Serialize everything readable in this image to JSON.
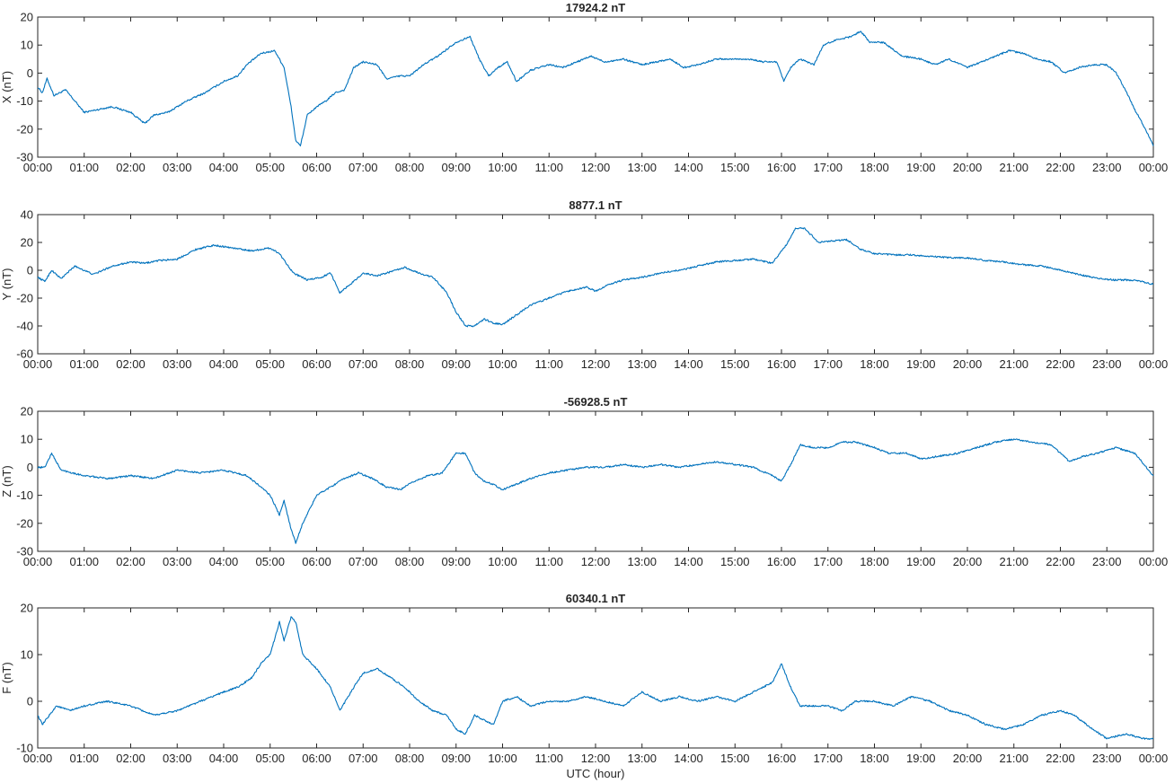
{
  "figure": {
    "xlabel": "UTC (hour)",
    "line_color": "#0072BD"
  },
  "chart_data": [
    {
      "type": "line",
      "title": "17924.2 nT",
      "ylabel": "X (nT)",
      "xlim": [
        0,
        24
      ],
      "ylim": [
        -30,
        20
      ],
      "yticks": [
        -30,
        -20,
        -10,
        0,
        10,
        20
      ],
      "xticks": [
        "00:00",
        "01:00",
        "02:00",
        "03:00",
        "04:00",
        "05:00",
        "06:00",
        "07:00",
        "08:00",
        "09:00",
        "10:00",
        "11:00",
        "12:00",
        "13:00",
        "14:00",
        "15:00",
        "16:00",
        "17:00",
        "18:00",
        "19:00",
        "20:00",
        "21:00",
        "22:00",
        "23:00",
        "00:00"
      ],
      "x": [
        0,
        0.1,
        0.2,
        0.35,
        0.6,
        1,
        1.3,
        1.6,
        2,
        2.3,
        2.5,
        2.8,
        3.2,
        3.6,
        4,
        4.3,
        4.5,
        4.8,
        5.1,
        5.3,
        5.45,
        5.55,
        5.65,
        5.8,
        6,
        6.2,
        6.4,
        6.6,
        6.8,
        7,
        7.3,
        7.5,
        7.8,
        8,
        8.3,
        8.6,
        9,
        9.3,
        9.5,
        9.7,
        9.9,
        10.1,
        10.3,
        10.6,
        11,
        11.3,
        11.6,
        11.9,
        12.2,
        12.6,
        13,
        13.3,
        13.6,
        13.9,
        14.2,
        14.6,
        15,
        15.3,
        15.6,
        15.9,
        16.05,
        16.2,
        16.4,
        16.7,
        16.9,
        17.2,
        17.5,
        17.7,
        17.9,
        18.2,
        18.6,
        19,
        19.3,
        19.6,
        20,
        20.3,
        20.6,
        20.9,
        21.2,
        21.5,
        21.8,
        22.1,
        22.4,
        22.7,
        23,
        23.2,
        23.4,
        23.6,
        23.8,
        24
      ],
      "values": [
        -5,
        -7,
        -2,
        -8,
        -6,
        -14,
        -13,
        -12,
        -14,
        -18,
        -15,
        -14,
        -10,
        -7,
        -3,
        -1,
        3,
        7,
        8,
        2,
        -12,
        -24,
        -26,
        -15,
        -12,
        -10,
        -7,
        -6,
        2,
        4,
        3,
        -2,
        -1,
        -1,
        3,
        6,
        11,
        13,
        5,
        -1,
        2,
        4,
        -3,
        1,
        3,
        2,
        4,
        6,
        4,
        5,
        3,
        4,
        5,
        2,
        3,
        5,
        5,
        5,
        4,
        4,
        -3,
        2,
        5,
        3,
        10,
        12,
        13,
        15,
        11,
        11,
        6,
        5,
        3,
        5,
        2,
        4,
        6,
        8,
        7,
        5,
        4,
        0,
        2,
        3,
        3,
        0,
        -6,
        -13,
        -19,
        -26
      ]
    },
    {
      "type": "line",
      "title": "8877.1 nT",
      "ylabel": "Y (nT)",
      "xlim": [
        0,
        24
      ],
      "ylim": [
        -60,
        40
      ],
      "yticks": [
        -60,
        -40,
        -20,
        0,
        20,
        40
      ],
      "xticks": [
        "00:00",
        "01:00",
        "02:00",
        "03:00",
        "04:00",
        "05:00",
        "06:00",
        "07:00",
        "08:00",
        "09:00",
        "10:00",
        "11:00",
        "12:00",
        "13:00",
        "14:00",
        "15:00",
        "16:00",
        "17:00",
        "18:00",
        "19:00",
        "20:00",
        "21:00",
        "22:00",
        "23:00",
        "00:00"
      ],
      "x": [
        0,
        0.15,
        0.3,
        0.5,
        0.8,
        1.2,
        1.6,
        2,
        2.3,
        2.6,
        3,
        3.4,
        3.8,
        4.2,
        4.6,
        5,
        5.2,
        5.5,
        5.8,
        6.1,
        6.3,
        6.5,
        6.8,
        7,
        7.3,
        7.6,
        7.9,
        8.2,
        8.5,
        8.8,
        9,
        9.2,
        9.4,
        9.6,
        9.8,
        10,
        10.3,
        10.6,
        11,
        11.4,
        11.8,
        12,
        12.3,
        12.6,
        13,
        13.4,
        13.8,
        14.2,
        14.6,
        15,
        15.4,
        15.8,
        16.1,
        16.3,
        16.5,
        16.8,
        17.1,
        17.4,
        17.7,
        18,
        18.4,
        18.8,
        19.2,
        19.6,
        20,
        20.4,
        20.8,
        21.2,
        21.6,
        22,
        22.4,
        22.8,
        23.2,
        23.6,
        24
      ],
      "values": [
        -5,
        -8,
        0,
        -6,
        3,
        -3,
        3,
        6,
        5,
        7,
        8,
        15,
        18,
        16,
        14,
        16,
        12,
        -2,
        -7,
        -5,
        -2,
        -16,
        -8,
        -2,
        -4,
        -1,
        2,
        -2,
        -5,
        -16,
        -30,
        -40,
        -40,
        -35,
        -38,
        -39,
        -32,
        -25,
        -20,
        -15,
        -12,
        -15,
        -10,
        -7,
        -5,
        -2,
        0,
        3,
        6,
        7,
        8,
        5,
        18,
        30,
        30,
        20,
        21,
        22,
        15,
        12,
        11,
        11,
        10,
        9,
        9,
        7,
        6,
        4,
        3,
        0,
        -3,
        -6,
        -7,
        -7,
        -10
      ]
    },
    {
      "type": "line",
      "title": "-56928.5 nT",
      "ylabel": "Z (nT)",
      "xlim": [
        0,
        24
      ],
      "ylim": [
        -30,
        20
      ],
      "yticks": [
        -30,
        -20,
        -10,
        0,
        10,
        20
      ],
      "xticks": [
        "00:00",
        "01:00",
        "02:00",
        "03:00",
        "04:00",
        "05:00",
        "06:00",
        "07:00",
        "08:00",
        "09:00",
        "10:00",
        "11:00",
        "12:00",
        "13:00",
        "14:00",
        "15:00",
        "16:00",
        "17:00",
        "18:00",
        "19:00",
        "20:00",
        "21:00",
        "22:00",
        "23:00",
        "00:00"
      ],
      "x": [
        0,
        0.15,
        0.3,
        0.5,
        1,
        1.5,
        2,
        2.5,
        3,
        3.5,
        4,
        4.5,
        4.8,
        5,
        5.2,
        5.3,
        5.45,
        5.55,
        5.7,
        6,
        6.3,
        6.6,
        6.9,
        7.2,
        7.5,
        7.8,
        8.1,
        8.4,
        8.7,
        9,
        9.2,
        9.4,
        9.6,
        9.8,
        10,
        10.3,
        10.6,
        11,
        11.4,
        11.8,
        12.2,
        12.6,
        13,
        13.4,
        13.8,
        14.2,
        14.6,
        15,
        15.4,
        15.8,
        16,
        16.2,
        16.4,
        16.7,
        17,
        17.3,
        17.6,
        18,
        18.3,
        18.7,
        19,
        19.4,
        19.8,
        20.2,
        20.6,
        21,
        21.4,
        21.8,
        22,
        22.2,
        22.5,
        22.8,
        23.2,
        23.6,
        24
      ],
      "values": [
        0,
        0,
        5,
        -1,
        -3,
        -4,
        -3,
        -4,
        -1,
        -2,
        -1,
        -3,
        -7,
        -10,
        -17,
        -12,
        -22,
        -27,
        -20,
        -10,
        -7,
        -4,
        -2,
        -4,
        -7,
        -8,
        -5,
        -3,
        -2,
        5,
        5,
        -2,
        -5,
        -6,
        -8,
        -6,
        -4,
        -2,
        -1,
        0,
        0,
        1,
        0,
        1,
        0,
        1,
        2,
        1,
        0,
        -3,
        -5,
        1,
        8,
        7,
        7,
        9,
        9,
        7,
        5,
        5,
        3,
        4,
        5,
        7,
        9,
        10,
        9,
        8,
        5,
        2,
        4,
        5,
        7,
        5,
        -3
      ]
    },
    {
      "type": "line",
      "title": "60340.1 nT",
      "ylabel": "F (nT)",
      "xlim": [
        0,
        24
      ],
      "ylim": [
        -10,
        20
      ],
      "yticks": [
        -10,
        0,
        10,
        20
      ],
      "xticks": [
        "00:00",
        "01:00",
        "02:00",
        "03:00",
        "04:00",
        "05:00",
        "06:00",
        "07:00",
        "08:00",
        "09:00",
        "10:00",
        "11:00",
        "12:00",
        "13:00",
        "14:00",
        "15:00",
        "16:00",
        "17:00",
        "18:00",
        "19:00",
        "20:00",
        "21:00",
        "22:00",
        "23:00",
        "00:00"
      ],
      "x": [
        0,
        0.1,
        0.25,
        0.4,
        0.7,
        1,
        1.5,
        2,
        2.5,
        3,
        3.5,
        4,
        4.3,
        4.6,
        4.8,
        5,
        5.2,
        5.3,
        5.45,
        5.55,
        5.7,
        6,
        6.3,
        6.5,
        6.8,
        7,
        7.3,
        7.6,
        7.9,
        8.2,
        8.5,
        8.8,
        9,
        9.2,
        9.4,
        9.6,
        9.8,
        10,
        10.3,
        10.6,
        11,
        11.4,
        11.8,
        12.2,
        12.6,
        13,
        13.4,
        13.8,
        14.2,
        14.6,
        15,
        15.4,
        15.8,
        16,
        16.2,
        16.4,
        16.7,
        17,
        17.3,
        17.6,
        18,
        18.4,
        18.8,
        19.2,
        19.6,
        20,
        20.4,
        20.8,
        21.2,
        21.6,
        22,
        22.3,
        22.7,
        23,
        23.4,
        23.8,
        24
      ],
      "values": [
        -3,
        -5,
        -3,
        -1,
        -2,
        -1,
        0,
        -1,
        -3,
        -2,
        0,
        2,
        3,
        5,
        8,
        10,
        17,
        13,
        18,
        17,
        10,
        7,
        3,
        -2,
        3,
        6,
        7,
        5,
        3,
        0,
        -2,
        -3,
        -6,
        -7,
        -3,
        -4,
        -5,
        0,
        1,
        -1,
        0,
        0,
        1,
        0,
        -1,
        2,
        0,
        1,
        0,
        1,
        0,
        2,
        4,
        8,
        3,
        -1,
        -1,
        -1,
        -2,
        0,
        0,
        -1,
        1,
        0,
        -2,
        -3,
        -5,
        -6,
        -5,
        -3,
        -2,
        -3,
        -6,
        -8,
        -7,
        -8,
        -8
      ]
    }
  ]
}
